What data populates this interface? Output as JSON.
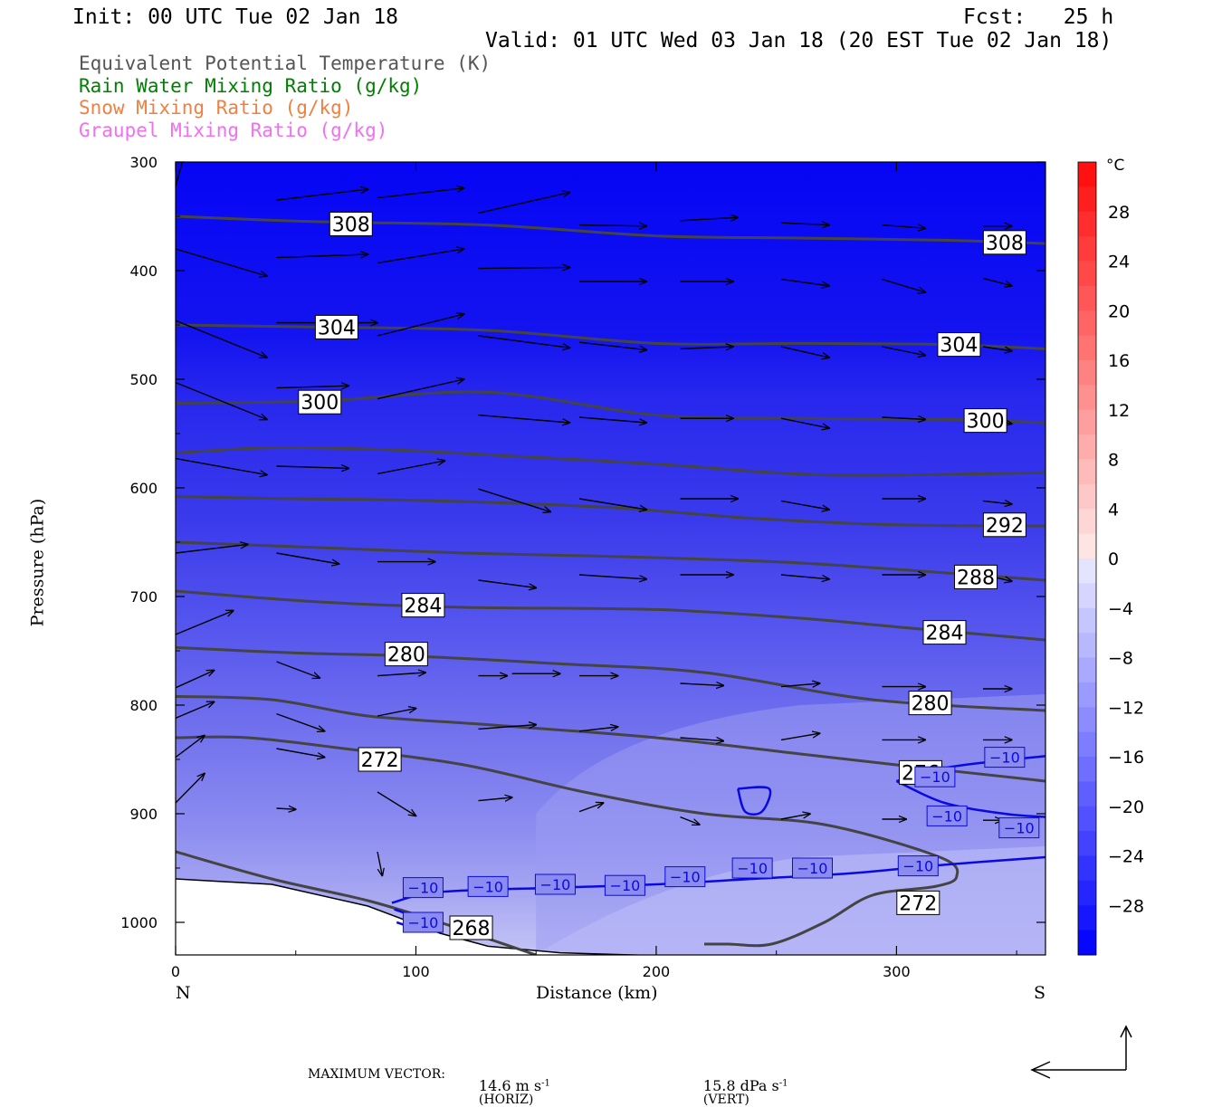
{
  "header": {
    "init": "Init: 00 UTC Tue 02 Jan 18",
    "fcst": "Fcst:   25 h",
    "valid": "Valid: 01 UTC Wed 03 Jan 18 (20 EST Tue 02 Jan 18)"
  },
  "legend": [
    {
      "label": "Equivalent Potential Temperature (K)",
      "color": "#555555"
    },
    {
      "label": "Rain Water Mixing Ratio (g/kg)",
      "color": "#008000"
    },
    {
      "label": "Snow Mixing Ratio (g/kg)",
      "color": "#f08040"
    },
    {
      "label": "Graupel Mixing Ratio (g/kg)",
      "color": "#f070f0"
    }
  ],
  "chart_data": {
    "type": "cross-section",
    "ylabel": "Pressure (hPa)",
    "xlabel": "Distance (km)",
    "x_ticks": [
      0,
      100,
      200,
      300
    ],
    "y_ticks": [
      300,
      400,
      500,
      600,
      700,
      800,
      900,
      1000
    ],
    "xlim": [
      0,
      362
    ],
    "ylim": [
      300,
      1030
    ],
    "x_end_labels": {
      "left": "N",
      "right": "S"
    },
    "colorbar": {
      "unit": "°C",
      "labels": [
        "28",
        "24",
        "20",
        "16",
        "12",
        "8",
        "4",
        "0",
        "−4",
        "−8",
        "−12",
        "−16",
        "−20",
        "−24",
        "−28"
      ],
      "values": [
        28,
        24,
        20,
        16,
        12,
        8,
        4,
        0,
        -4,
        -8,
        -12,
        -16,
        -20,
        -24,
        -28
      ],
      "min": -32,
      "max": 32
    },
    "theta_e_contours": [
      {
        "label": "308",
        "points": [
          [
            0,
            350
          ],
          [
            60,
            355
          ],
          [
            130,
            358
          ],
          [
            200,
            368
          ],
          [
            260,
            370
          ],
          [
            320,
            372
          ],
          [
            362,
            375
          ]
        ],
        "labels_at": [
          [
            73,
            357
          ],
          [
            345,
            374
          ]
        ]
      },
      {
        "label": "304",
        "points": [
          [
            0,
            450
          ],
          [
            60,
            452
          ],
          [
            130,
            455
          ],
          [
            200,
            467
          ],
          [
            260,
            467
          ],
          [
            320,
            468
          ],
          [
            362,
            472
          ]
        ],
        "labels_at": [
          [
            67,
            452
          ],
          [
            326,
            468
          ]
        ]
      },
      {
        "label": "300",
        "points": [
          [
            0,
            522
          ],
          [
            60,
            520
          ],
          [
            130,
            512
          ],
          [
            200,
            533
          ],
          [
            260,
            536
          ],
          [
            320,
            537
          ],
          [
            362,
            540
          ]
        ],
        "labels_at": [
          [
            60,
            521
          ],
          [
            337,
            538
          ]
        ]
      },
      {
        "label": "",
        "points": [
          [
            0,
            568
          ],
          [
            40,
            563
          ],
          [
            90,
            565
          ],
          [
            150,
            572
          ],
          [
            200,
            578
          ],
          [
            270,
            588
          ],
          [
            362,
            586
          ]
        ],
        "labels_at": []
      },
      {
        "label": "292",
        "points": [
          [
            0,
            608
          ],
          [
            50,
            610
          ],
          [
            110,
            612
          ],
          [
            180,
            618
          ],
          [
            240,
            628
          ],
          [
            300,
            634
          ],
          [
            362,
            635
          ]
        ],
        "labels_at": [
          [
            345,
            634
          ]
        ]
      },
      {
        "label": "288",
        "points": [
          [
            0,
            650
          ],
          [
            60,
            655
          ],
          [
            120,
            660
          ],
          [
            180,
            663
          ],
          [
            250,
            668
          ],
          [
            300,
            675
          ],
          [
            362,
            685
          ]
        ],
        "labels_at": [
          [
            333,
            682
          ]
        ]
      },
      {
        "label": "284",
        "points": [
          [
            0,
            695
          ],
          [
            60,
            705
          ],
          [
            120,
            710
          ],
          [
            200,
            712
          ],
          [
            260,
            720
          ],
          [
            300,
            728
          ],
          [
            362,
            740
          ]
        ],
        "labels_at": [
          [
            103,
            708
          ],
          [
            320,
            733
          ]
        ]
      },
      {
        "label": "280",
        "points": [
          [
            0,
            747
          ],
          [
            50,
            752
          ],
          [
            100,
            755
          ],
          [
            160,
            762
          ],
          [
            220,
            770
          ],
          [
            290,
            795
          ],
          [
            362,
            805
          ]
        ],
        "labels_at": [
          [
            96,
            753
          ],
          [
            314,
            798
          ]
        ]
      },
      {
        "label": "276",
        "points": [
          [
            0,
            792
          ],
          [
            40,
            795
          ],
          [
            80,
            810
          ],
          [
            130,
            818
          ],
          [
            200,
            830
          ],
          [
            260,
            845
          ],
          [
            300,
            855
          ],
          [
            362,
            870
          ]
        ],
        "labels_at": [
          [
            310,
            862
          ]
        ]
      },
      {
        "label": "272",
        "points": [
          [
            0,
            830
          ],
          [
            30,
            830
          ],
          [
            70,
            840
          ],
          [
            120,
            855
          ],
          [
            170,
            880
          ],
          [
            220,
            900
          ],
          [
            270,
            910
          ],
          [
            318,
            940
          ],
          [
            325,
            958
          ],
          [
            316,
            967
          ],
          [
            290,
            975
          ],
          [
            270,
            1000
          ],
          [
            248,
            1020
          ],
          [
            230,
            1020
          ],
          [
            220,
            1020
          ]
        ],
        "labels_at": [
          [
            85,
            850
          ],
          [
            309,
            982
          ]
        ]
      },
      {
        "label": "268",
        "points": [
          [
            0,
            935
          ],
          [
            40,
            960
          ],
          [
            80,
            980
          ],
          [
            110,
            1000
          ],
          [
            130,
            1015
          ],
          [
            150,
            1030
          ]
        ],
        "labels_at": [
          [
            123,
            1005
          ]
        ]
      }
    ],
    "temperature_contours": [
      {
        "label": "−10",
        "points": [
          [
            90,
            982
          ],
          [
            110,
            972
          ],
          [
            160,
            968
          ],
          [
            200,
            965
          ],
          [
            240,
            960
          ],
          [
            280,
            955
          ],
          [
            320,
            947
          ],
          [
            362,
            940
          ]
        ],
        "labels_at": [
          [
            103,
            968
          ],
          [
            130,
            967
          ],
          [
            158,
            965
          ],
          [
            187,
            966
          ],
          [
            212,
            958
          ],
          [
            240,
            950
          ],
          [
            265,
            950
          ],
          [
            309,
            948
          ]
        ]
      },
      {
        "label": "−10",
        "points": [
          [
            300,
            870
          ],
          [
            320,
            858
          ],
          [
            340,
            852
          ],
          [
            362,
            847
          ]
        ],
        "labels_at": [
          [
            345,
            848
          ]
        ]
      },
      {
        "label": "−10",
        "points": [
          [
            300,
            870
          ],
          [
            320,
            890
          ],
          [
            345,
            900
          ],
          [
            362,
            903
          ]
        ],
        "labels_at": [
          [
            321,
            902
          ],
          [
            351,
            913
          ],
          [
            316,
            866
          ]
        ]
      },
      {
        "label": "−10",
        "points": [
          [
            91,
            988
          ],
          [
            105,
            1000
          ],
          [
            100,
            1005
          ],
          [
            92,
            1000
          ]
        ],
        "labels_at": [
          [
            103,
            1000
          ]
        ]
      },
      {
        "label": "",
        "points": [
          [
            234,
            877
          ],
          [
            247,
            877
          ],
          [
            244,
            898
          ],
          [
            237,
            898
          ],
          [
            234,
            877
          ]
        ],
        "labels_at": []
      }
    ],
    "wind_vectors": [
      [
        0,
        322,
        35,
        47
      ],
      [
        42,
        335,
        80,
        325
      ],
      [
        84,
        333,
        120,
        324
      ],
      [
        126,
        347,
        164,
        328
      ],
      [
        0,
        380,
        38,
        405
      ],
      [
        42,
        388,
        80,
        385
      ],
      [
        84,
        393,
        120,
        380
      ],
      [
        126,
        398,
        164,
        397
      ],
      [
        0,
        446,
        38,
        480
      ],
      [
        42,
        448,
        84,
        448
      ],
      [
        84,
        460,
        120,
        440
      ],
      [
        126,
        460,
        164,
        471
      ],
      [
        0,
        503,
        38,
        537
      ],
      [
        42,
        508,
        72,
        506
      ],
      [
        84,
        518,
        120,
        500
      ],
      [
        126,
        533,
        164,
        540
      ],
      [
        0,
        573,
        38,
        588
      ],
      [
        42,
        580,
        72,
        582
      ],
      [
        84,
        587,
        112,
        575
      ],
      [
        126,
        601,
        156,
        622
      ],
      [
        0,
        660,
        30,
        652
      ],
      [
        42,
        660,
        68,
        670
      ],
      [
        84,
        668,
        108,
        668
      ],
      [
        126,
        685,
        150,
        692
      ],
      [
        0,
        735,
        24,
        713
      ],
      [
        0,
        784,
        16,
        768
      ],
      [
        0,
        812,
        16,
        797
      ],
      [
        0,
        848,
        12,
        828
      ],
      [
        0,
        890,
        12,
        863
      ],
      [
        42,
        760,
        60,
        775
      ],
      [
        84,
        773,
        104,
        770
      ],
      [
        126,
        773,
        138,
        773
      ],
      [
        42,
        808,
        62,
        824
      ],
      [
        84,
        810,
        100,
        803
      ],
      [
        126,
        822,
        150,
        818
      ],
      [
        126,
        888,
        140,
        885
      ],
      [
        42,
        840,
        62,
        848
      ],
      [
        84,
        880,
        100,
        902
      ],
      [
        42,
        895,
        50,
        896
      ],
      [
        84,
        935,
        86,
        957
      ],
      [
        168,
        358,
        196,
        359
      ],
      [
        210,
        354,
        234,
        351
      ],
      [
        252,
        356,
        272,
        358
      ],
      [
        294,
        358,
        312,
        361
      ],
      [
        336,
        359,
        348,
        359
      ],
      [
        168,
        410,
        196,
        410
      ],
      [
        210,
        410,
        232,
        410
      ],
      [
        252,
        408,
        272,
        414
      ],
      [
        294,
        408,
        312,
        420
      ],
      [
        336,
        407,
        348,
        414
      ],
      [
        168,
        466,
        196,
        473
      ],
      [
        210,
        472,
        232,
        470
      ],
      [
        252,
        470,
        272,
        480
      ],
      [
        294,
        470,
        312,
        478
      ],
      [
        336,
        470,
        348,
        474
      ],
      [
        168,
        535,
        196,
        540
      ],
      [
        210,
        536,
        232,
        536
      ],
      [
        252,
        536,
        272,
        545
      ],
      [
        294,
        535,
        312,
        537
      ],
      [
        336,
        536,
        348,
        541
      ],
      [
        168,
        610,
        196,
        620
      ],
      [
        210,
        610,
        234,
        610
      ],
      [
        252,
        612,
        272,
        620
      ],
      [
        294,
        610,
        312,
        610
      ],
      [
        336,
        612,
        348,
        615
      ],
      [
        168,
        680,
        196,
        684
      ],
      [
        210,
        680,
        232,
        680
      ],
      [
        252,
        680,
        272,
        684
      ],
      [
        294,
        680,
        312,
        680
      ],
      [
        336,
        680,
        348,
        686
      ],
      [
        140,
        771,
        160,
        771
      ],
      [
        168,
        773,
        184,
        773
      ],
      [
        210,
        780,
        228,
        782
      ],
      [
        252,
        783,
        268,
        780
      ],
      [
        294,
        783,
        312,
        783
      ],
      [
        336,
        785,
        348,
        785
      ],
      [
        168,
        824,
        184,
        820
      ],
      [
        210,
        830,
        228,
        833
      ],
      [
        252,
        832,
        268,
        826
      ],
      [
        294,
        832,
        312,
        832
      ],
      [
        336,
        832,
        348,
        832
      ],
      [
        168,
        898,
        178,
        890
      ],
      [
        210,
        903,
        218,
        910
      ],
      [
        252,
        905,
        264,
        900
      ],
      [
        294,
        905,
        304,
        905
      ],
      [
        336,
        906,
        344,
        906
      ]
    ],
    "footer": {
      "max_vector_label": "MAXIMUM VECTOR:",
      "horiz_value": "14.6 m s",
      "horiz_exp": "-1",
      "horiz_tag": "(HORIZ)",
      "vert_value": "15.8 dPa s",
      "vert_exp": "-1",
      "vert_tag": "(VERT)"
    }
  }
}
